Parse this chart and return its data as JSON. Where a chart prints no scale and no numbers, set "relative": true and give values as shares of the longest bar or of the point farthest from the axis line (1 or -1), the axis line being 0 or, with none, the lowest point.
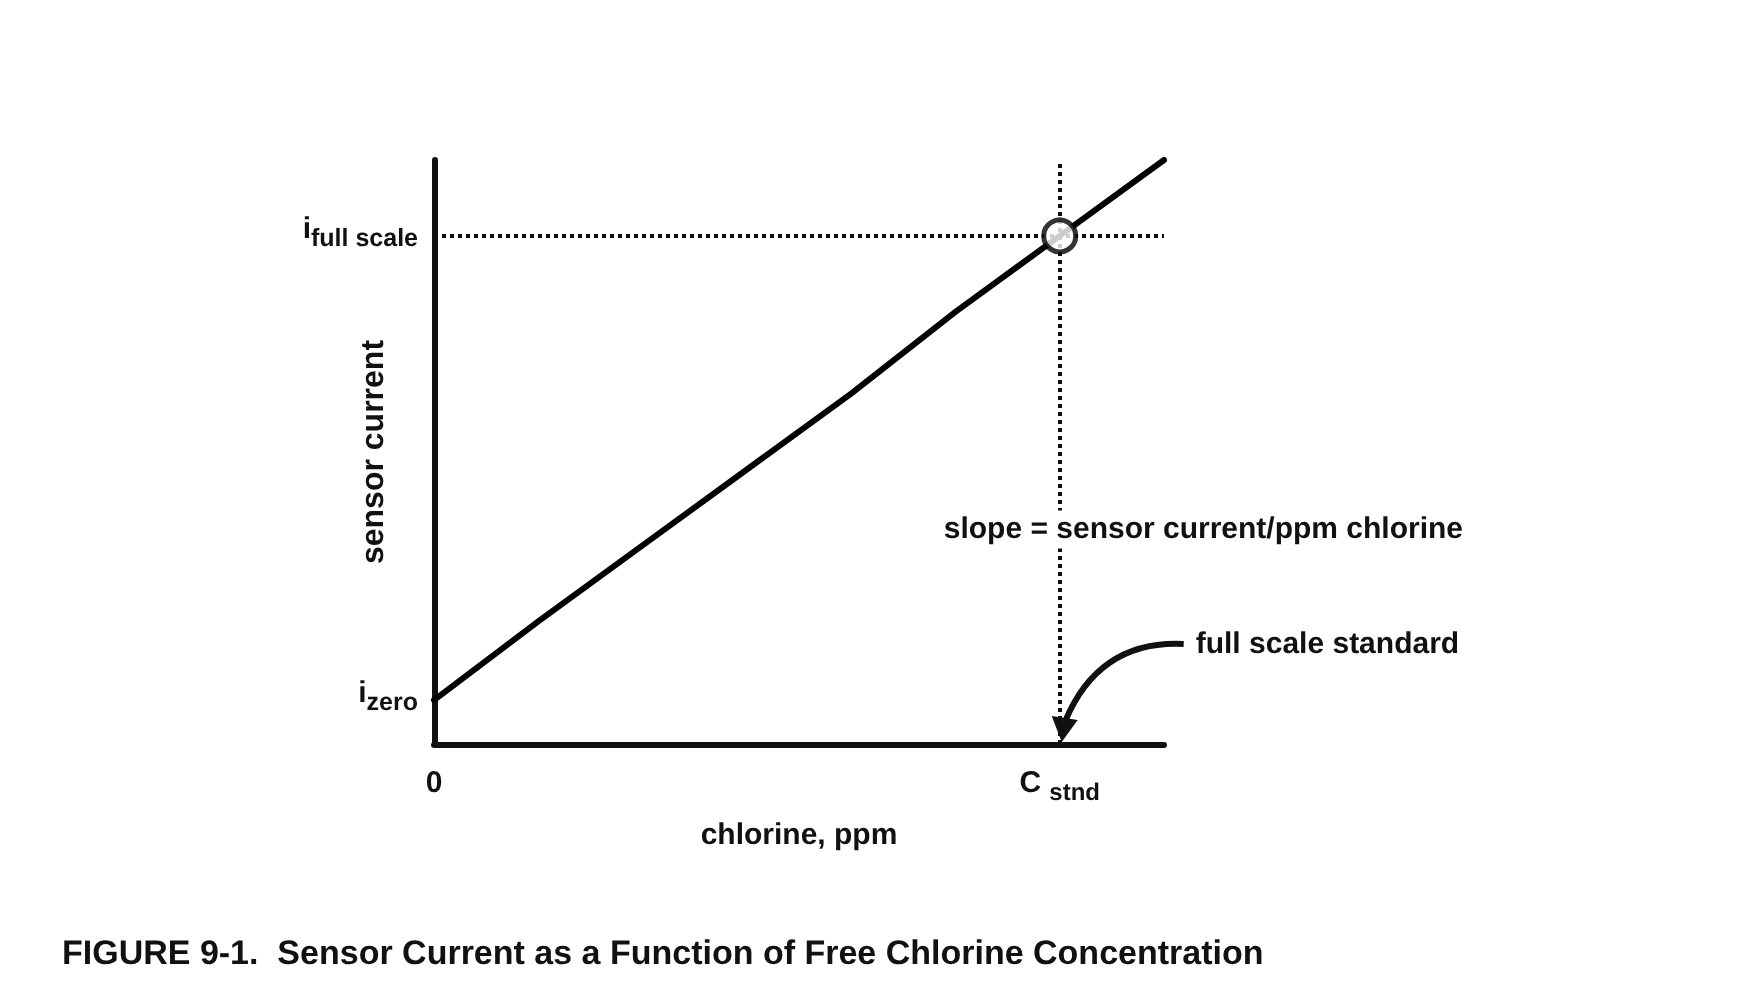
{
  "chart_data": {
    "type": "line",
    "title": "FIGURE 9-1.  Sensor Current as a Function of Free Chlorine Concentration",
    "xlabel": "chlorine, ppm",
    "ylabel": "sensor current",
    "relative": true,
    "categories": [
      "0",
      null,
      null,
      null,
      null,
      null,
      "C $_{stnd}$",
      null
    ],
    "series": [
      {
        "color": "#000000",
        "values": [
          0.075,
          0.21,
          0.34,
          0.47,
          0.6,
          0.74,
          0.87,
          1.0
        ],
        "marker": "none"
      },
      {
        "type": "scatter",
        "color": "#000000",
        "x": [
          "C $_{stnd}$"
        ],
        "values": [
          0.87
        ],
        "marker": "circle"
      }
    ],
    "ref_lines": [
      {
        "axis": "y",
        "value": 0.87,
        "line_style": "dotted"
      },
      {
        "axis": "x",
        "value": "C $_{stnd}$",
        "line_style": "dotted"
      }
    ],
    "annotations": [
      "slope = sensor current/ppm chlorine",
      "full scale standard",
      "i$_{zero}$",
      "i$_{full scale}$"
    ],
    "grid": false
  }
}
